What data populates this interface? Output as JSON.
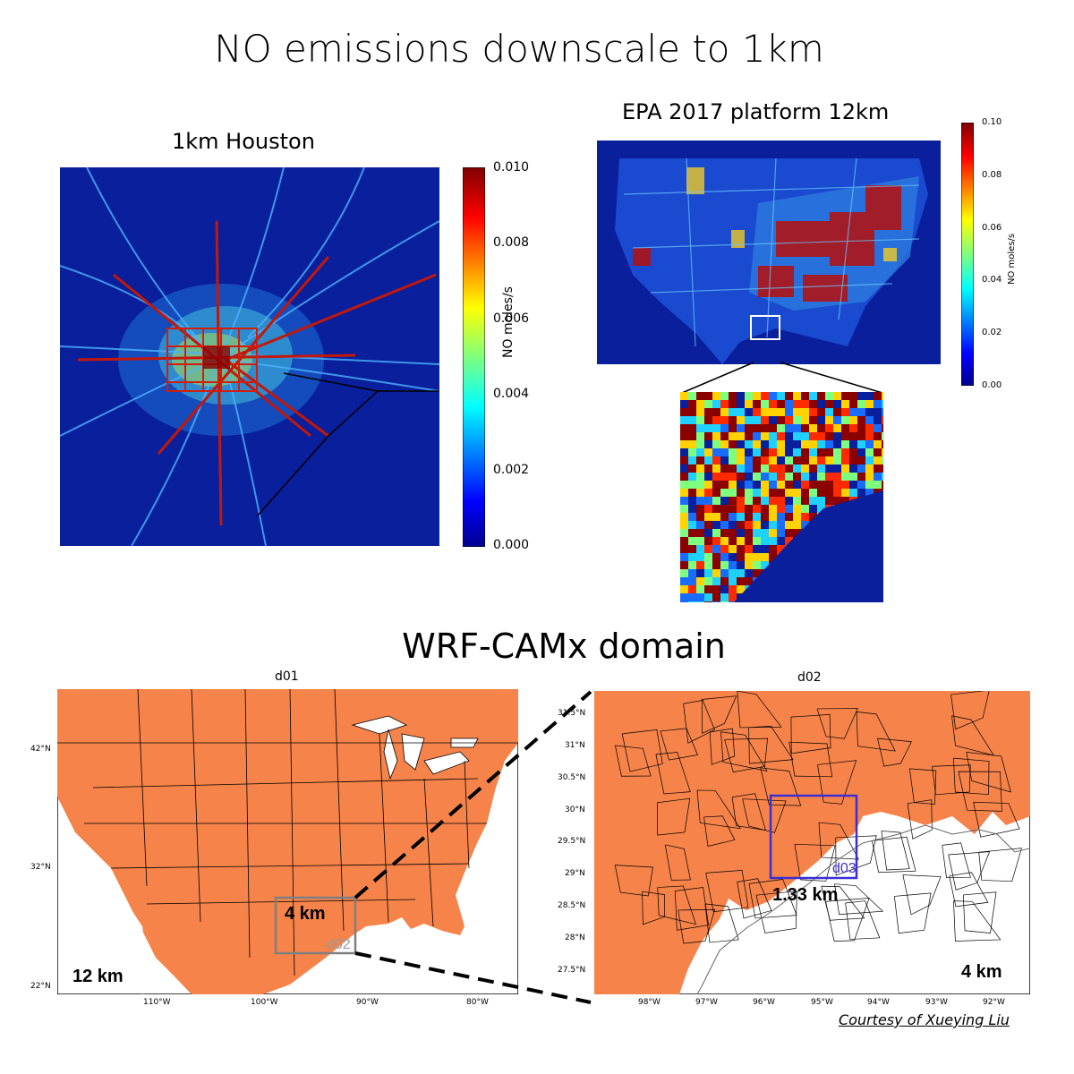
{
  "title": "NO emissions downscale to 1km",
  "section_title": "WRF-CAMx domain",
  "credit": "Courtesy of Xueying Liu",
  "houston_map": {
    "title": "1km Houston",
    "colorbar_label": "NO moles/s",
    "ticks": [
      "0.000",
      "0.002",
      "0.004",
      "0.006",
      "0.008",
      "0.010"
    ]
  },
  "epa_map": {
    "title": "EPA 2017 platform 12km",
    "colorbar_label": "NO moles/s",
    "ticks": [
      "0.00",
      "0.02",
      "0.04",
      "0.06",
      "0.08",
      "0.10"
    ]
  },
  "d01_map": {
    "title": "d01",
    "resolution_label": "12 km",
    "nest_resolution_label": "4 km",
    "nest_name": "d02",
    "lat_ticks": [
      "42°N",
      "32°N",
      "22°N"
    ],
    "lon_ticks": [
      "110°W",
      "100°W",
      "90°W",
      "80°W"
    ],
    "land_color": "#f5834a"
  },
  "d02_map": {
    "title": "d02",
    "resolution_label": "4 km",
    "nest_resolution_label": "1.33 km",
    "nest_name": "d03",
    "nest_color": "#3a2fd0",
    "lat_ticks": [
      "31.5°N",
      "31°N",
      "30.5°N",
      "30°N",
      "29.5°N",
      "29°N",
      "28.5°N",
      "28°N",
      "27.5°N"
    ],
    "lon_ticks": [
      "98°W",
      "97°W",
      "96°W",
      "95°W",
      "94°W",
      "93°W",
      "92°W"
    ],
    "land_color": "#f5834a"
  }
}
